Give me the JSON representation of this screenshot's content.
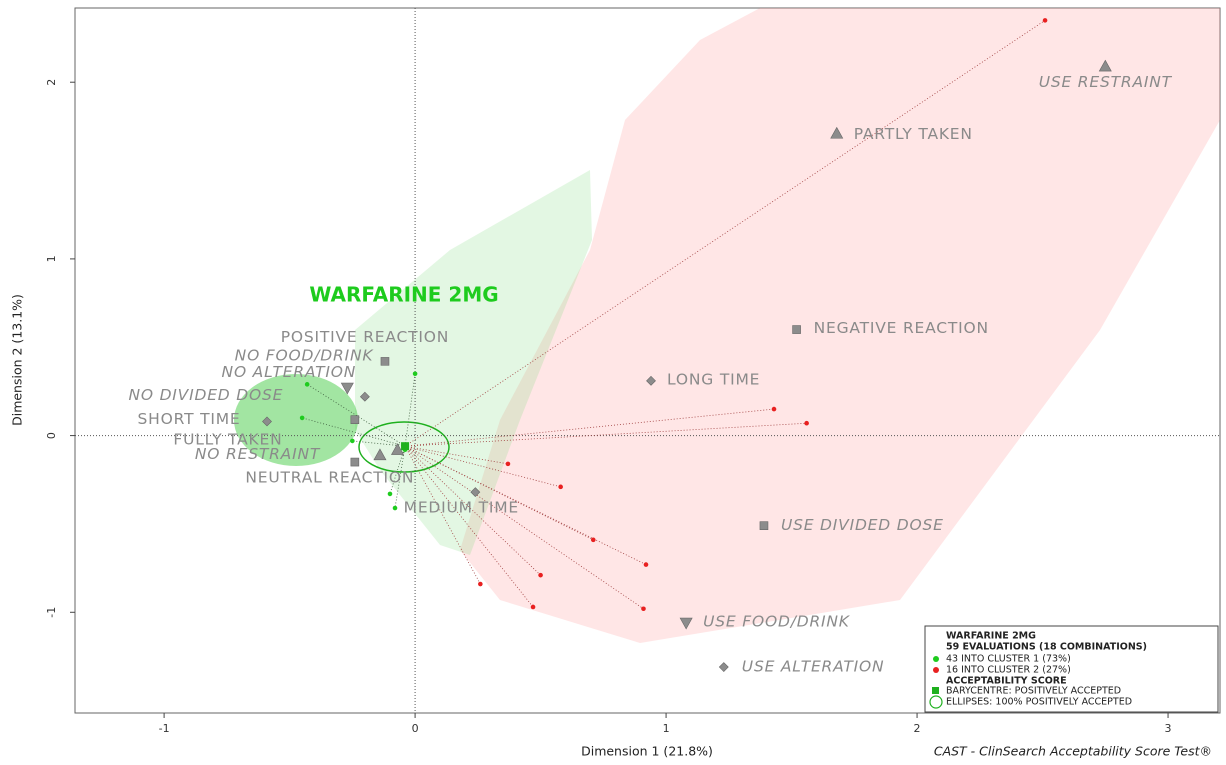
{
  "chart_data": {
    "type": "scatter",
    "title": "WARFARINE 2MG",
    "title_color": "#1ecb1e",
    "xlabel": "Dimension 1 (21.8%)",
    "ylabel": "Dimension 2 (13.1%)",
    "footer": "CAST - ClinSearch Acceptability Score Test®",
    "xlim": [
      -1.355,
      3.207
    ],
    "ylim": [
      -1.57,
      2.42
    ],
    "xticks": [
      -1,
      0,
      1,
      2,
      3
    ],
    "yticks": [
      -1,
      0,
      1,
      2
    ],
    "zero_lines": true,
    "modalities": {
      "color": "#8c8c8c",
      "labels": [
        "USE RESTRAINT",
        "PARTLY TAKEN",
        "NEGATIVE REACTION",
        "LONG TIME",
        "USE DIVIDED DOSE",
        "USE FOOD/DRINK",
        "USE ALTERATION",
        "MEDIUM TIME",
        "POSITIVE REACTION",
        "NO FOOD/DRINK",
        "NO ALTERATION",
        "NO DIVIDED DOSE",
        "SHORT TIME",
        "FULLY TAKEN",
        "NO RESTRAINT",
        "NEUTRAL REACTION"
      ],
      "x": [
        2.75,
        1.68,
        1.52,
        0.94,
        1.39,
        1.08,
        1.23,
        0.24,
        -0.12,
        -0.27,
        -0.2,
        -0.24,
        -0.59,
        -0.14,
        -0.07,
        -0.24
      ],
      "y": [
        2.09,
        1.71,
        0.6,
        0.31,
        -0.51,
        -1.06,
        -1.31,
        -0.32,
        0.42,
        0.27,
        0.22,
        0.09,
        0.08,
        -0.11,
        -0.08,
        -0.15
      ],
      "shapes": [
        "triangle",
        "triangle",
        "square",
        "diamond",
        "square",
        "triangle-down",
        "diamond",
        "diamond",
        "square",
        "triangle-down",
        "diamond",
        "square",
        "diamond",
        "triangle",
        "triangle",
        "square"
      ],
      "italic": [
        true,
        false,
        false,
        false,
        true,
        true,
        true,
        false,
        false,
        true,
        true,
        true,
        false,
        false,
        true,
        false
      ]
    },
    "series": [
      {
        "name": "43 INTO CLUSTER 1 (73%)",
        "color": "#1ecb1e",
        "x": [
          -0.43,
          -0.45,
          0.0,
          -0.25,
          -0.1,
          -0.08,
          -0.04
        ],
        "y": [
          0.29,
          0.1,
          0.35,
          -0.03,
          -0.33,
          -0.41,
          -0.08
        ]
      },
      {
        "name": "16 INTO CLUSTER 2 (27%)",
        "color": "#e82020",
        "x": [
          2.51,
          1.43,
          1.56,
          0.37,
          0.58,
          0.71,
          0.92,
          0.5,
          0.91,
          0.47,
          0.26
        ],
        "y": [
          2.35,
          0.15,
          0.07,
          -0.16,
          -0.29,
          -0.59,
          -0.73,
          -0.79,
          -0.98,
          -0.97,
          -0.84
        ]
      }
    ],
    "barycentre": {
      "name": "BARYCENTRE: POSITIVELY ACCEPTED",
      "x": -0.04,
      "y": -0.06,
      "color": "#1eb01e"
    },
    "ellipse_label": "ELLIPSES: 100% POSITIVELY ACCEPTED",
    "legend": {
      "position": "bottom-right",
      "subtitle": "59 EVALUATIONS (18 COMBINATIONS)",
      "section": "ACCEPTABILITY SCORE"
    }
  }
}
